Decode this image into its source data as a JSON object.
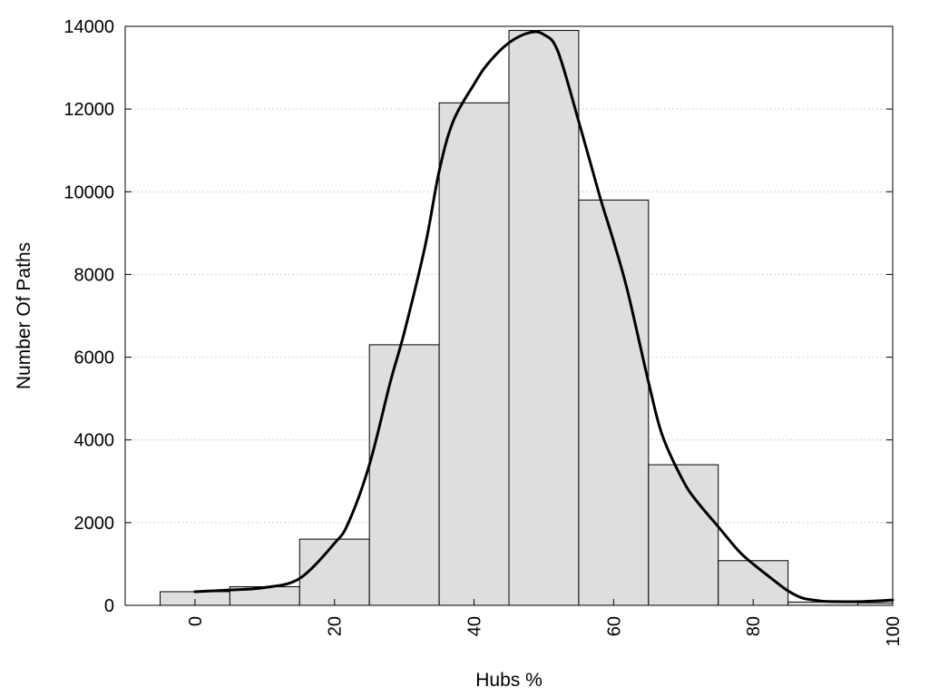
{
  "chart_data": {
    "type": "bar",
    "title": "",
    "xlabel": "Hubs %",
    "ylabel": "Number Of Paths",
    "categories": [
      "0",
      "10",
      "20",
      "30",
      "40",
      "50",
      "60",
      "70",
      "80",
      "90",
      "100"
    ],
    "x": [
      0,
      10,
      20,
      30,
      40,
      50,
      60,
      70,
      80,
      90,
      100
    ],
    "bin_width": 10,
    "values": [
      330,
      450,
      1600,
      6300,
      12150,
      13900,
      9800,
      3400,
      1080,
      80,
      60
    ],
    "xlim": [
      -10,
      100
    ],
    "ylim": [
      0,
      14000
    ],
    "x_ticks": [
      0,
      20,
      40,
      60,
      80,
      100
    ],
    "y_ticks": [
      0,
      2000,
      4000,
      6000,
      8000,
      10000,
      12000,
      14000
    ],
    "grid": "horizontal dotted",
    "legend": "none",
    "bar_color": "#dedede",
    "bar_edge_color": "#000000",
    "curve": {
      "x": [
        0,
        5,
        10,
        15,
        20,
        22,
        25,
        28,
        30,
        33,
        35,
        37,
        40,
        42,
        45,
        48,
        50,
        52,
        55,
        58,
        60,
        62,
        65,
        67,
        70,
        72,
        75,
        78,
        80,
        83,
        85,
        87,
        89,
        90,
        92,
        95,
        98,
        100
      ],
      "y": [
        330,
        370,
        430,
        650,
        1500,
        2000,
        3400,
        5400,
        6600,
        8700,
        10500,
        11700,
        12600,
        13100,
        13600,
        13850,
        13800,
        13400,
        11700,
        9900,
        8800,
        7600,
        5400,
        4100,
        3000,
        2500,
        1900,
        1300,
        1000,
        600,
        350,
        180,
        120,
        100,
        90,
        90,
        110,
        130
      ],
      "color": "#000000"
    }
  }
}
